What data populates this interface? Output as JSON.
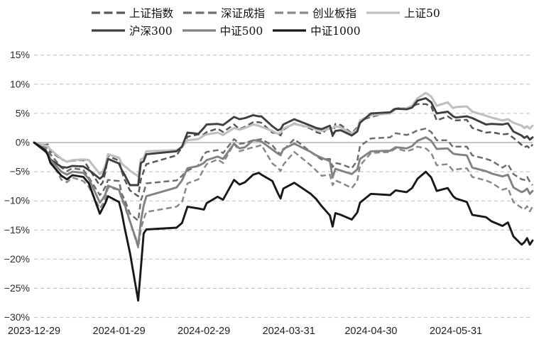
{
  "page": {
    "background": "#ffffff"
  },
  "chart_data": {
    "type": "line",
    "title": "",
    "xlabel": "",
    "ylabel": "",
    "legend_position": "top",
    "grid": {
      "gridline_color": "#bdbdbd",
      "zero_line_color": "#a3a3a3",
      "gridline_style": "dashed"
    },
    "y_axis": {
      "unit": "%",
      "ylim": [
        -30,
        15
      ],
      "tick_values": [
        15,
        10,
        5,
        0,
        -5,
        -10,
        -15,
        -20,
        -25,
        -30
      ],
      "tick_labels": [
        "15%",
        "10%",
        "5%",
        "0%",
        "−5%",
        "−10%",
        "−15%",
        "−20%",
        "−25%",
        "−30%"
      ]
    },
    "x_axis": {
      "unit": "date",
      "start_date": "2023-12-29",
      "range_days": [
        0,
        182
      ],
      "tick_days": [
        0,
        31,
        62,
        93,
        123,
        154
      ],
      "tick_labels": [
        "2023-12-29",
        "2024-01-29",
        "2024-02-29",
        "2024-03-31",
        "2024-04-30",
        "2024-05-31"
      ]
    },
    "x_days": [
      0,
      4,
      5,
      6,
      10,
      12,
      14,
      18,
      20,
      24,
      25,
      26,
      27,
      31,
      32,
      33,
      35,
      38,
      39,
      40,
      41,
      52,
      54,
      56,
      60,
      62,
      63,
      67,
      69,
      73,
      75,
      77,
      80,
      82,
      83,
      87,
      89,
      90,
      91,
      95,
      101,
      103,
      105,
      108,
      109,
      110,
      112,
      116,
      118,
      119,
      123,
      130,
      132,
      136,
      138,
      140,
      143,
      145,
      147,
      151,
      153,
      154,
      158,
      160,
      165,
      167,
      171,
      173,
      175,
      178,
      179,
      180,
      181,
      182
    ],
    "series": [
      {
        "id": "sse-composite",
        "name": "上证指数",
        "color": "#575757",
        "dash": true,
        "width": 2.5,
        "values": [
          0,
          -0.4,
          -0.3,
          -1.5,
          -2.9,
          -3.3,
          -3.1,
          -3.0,
          -4.4,
          -7.4,
          -6.9,
          -5.2,
          -2.3,
          -3.1,
          -4.9,
          -6.3,
          -8.2,
          -9.2,
          -6.3,
          -4.9,
          -3.7,
          -2.2,
          -0.8,
          1.0,
          1.4,
          1.4,
          1.8,
          2.4,
          1.8,
          3.1,
          2.3,
          2.7,
          3.5,
          3.5,
          3.4,
          1.7,
          1.6,
          1.2,
          2.2,
          3.3,
          2.4,
          1.8,
          1.5,
          2.8,
          1.1,
          3.2,
          3.0,
          1.6,
          2.6,
          3.8,
          4.4,
          5.2,
          6.0,
          5.7,
          6.2,
          6.6,
          6.6,
          6.2,
          3.8,
          4.5,
          3.9,
          3.8,
          3.9,
          2.5,
          1.7,
          1.8,
          1.4,
          1.5,
          0.8,
          -0.4,
          -0.8,
          -0.6,
          -1.0,
          -0.3
        ]
      },
      {
        "id": "szse-component",
        "name": "深证成指",
        "color": "#6e6e6e",
        "dash": true,
        "width": 2.5,
        "values": [
          0,
          -0.8,
          -1.1,
          -2.0,
          -4.3,
          -4.9,
          -4.4,
          -4.7,
          -6.0,
          -9.0,
          -8.5,
          -7.6,
          -6.4,
          -6.6,
          -8.8,
          -9.7,
          -12.2,
          -13.4,
          -9.9,
          -8.6,
          -7.0,
          -6.5,
          -5.7,
          -4.8,
          -3.9,
          -2.0,
          -1.6,
          -1.3,
          -1.8,
          0.6,
          -0.2,
          -0.1,
          0.4,
          0.5,
          0.6,
          -0.5,
          -1.6,
          -2.0,
          -1.3,
          0.6,
          -1.6,
          -2.3,
          -2.9,
          -2.8,
          -4.2,
          -3.5,
          -3.7,
          -4.4,
          -3.1,
          -0.6,
          0.7,
          0.9,
          1.6,
          1.3,
          1.6,
          2.1,
          2.4,
          1.8,
          0.4,
          0.4,
          -0.8,
          -0.7,
          -0.7,
          -2.2,
          -2.8,
          -3.1,
          -4.3,
          -3.7,
          -5.4,
          -6.3,
          -6.4,
          -5.9,
          -6.7,
          -7.3
        ]
      },
      {
        "id": "chinext",
        "name": "创业板指",
        "color": "#898989",
        "dash": true,
        "width": 2.5,
        "values": [
          0,
          -0.7,
          -1.6,
          -2.9,
          -6.4,
          -6.8,
          -6.0,
          -6.6,
          -7.6,
          -11.3,
          -10.6,
          -9.6,
          -7.7,
          -8.1,
          -9.8,
          -10.8,
          -13.6,
          -18.0,
          -14.9,
          -13.1,
          -11.9,
          -11.0,
          -10.2,
          -7.0,
          -6.3,
          -4.5,
          -3.7,
          -2.9,
          -3.5,
          -0.2,
          -1.5,
          -1.2,
          -0.8,
          -0.6,
          -0.4,
          -3.6,
          -4.3,
          -4.9,
          -3.8,
          -1.6,
          -3.9,
          -4.8,
          -5.7,
          -5.5,
          -7.3,
          -6.5,
          -6.9,
          -7.8,
          -6.6,
          -3.9,
          -1.8,
          -1.6,
          -1.0,
          -1.5,
          -1.2,
          -0.7,
          -1.0,
          -1.8,
          -3.9,
          -3.7,
          -4.8,
          -4.6,
          -4.4,
          -5.9,
          -6.5,
          -6.9,
          -8.1,
          -7.8,
          -10.2,
          -11.2,
          -11.5,
          -10.9,
          -11.8,
          -11.0
        ]
      },
      {
        "id": "sse50",
        "name": "上证50",
        "color": "#bfbfbf",
        "dash": false,
        "width": 3.1,
        "values": [
          0,
          -0.5,
          -0.6,
          -1.2,
          -2.8,
          -3.3,
          -3.0,
          -2.9,
          -3.0,
          -5.4,
          -5.0,
          -4.0,
          -2.0,
          -2.6,
          -3.6,
          -4.0,
          -4.8,
          -5.8,
          -2.9,
          -2.6,
          -1.5,
          -1.3,
          -0.8,
          0.4,
          0.6,
          1.2,
          1.4,
          1.7,
          1.3,
          2.5,
          2.2,
          2.5,
          3.1,
          2.9,
          2.7,
          2.0,
          1.5,
          1.7,
          2.4,
          3.2,
          2.6,
          2.2,
          2.0,
          2.4,
          2.5,
          2.8,
          2.6,
          1.5,
          2.3,
          3.8,
          4.7,
          5.0,
          5.8,
          5.9,
          6.3,
          7.6,
          8.5,
          7.9,
          6.3,
          6.9,
          5.9,
          6.1,
          6.2,
          5.3,
          4.6,
          4.3,
          3.8,
          4.0,
          3.4,
          2.9,
          2.5,
          2.8,
          2.4,
          2.9
        ]
      },
      {
        "id": "csi300",
        "name": "沪深300",
        "color": "#3f3f3f",
        "dash": false,
        "width": 2.9,
        "values": [
          0,
          -1.5,
          -1.8,
          -2.9,
          -4.2,
          -4.3,
          -4.0,
          -4.1,
          -4.7,
          -6.2,
          -5.8,
          -4.5,
          -2.8,
          -3.6,
          -4.7,
          -5.5,
          -7.3,
          -7.3,
          -3.5,
          -3.2,
          -2.0,
          -1.5,
          -0.7,
          1.7,
          1.5,
          2.5,
          3.1,
          3.2,
          3.0,
          4.4,
          4.0,
          4.2,
          4.7,
          4.5,
          4.5,
          2.8,
          2.1,
          2.3,
          3.1,
          4.0,
          2.9,
          2.5,
          2.3,
          2.9,
          1.2,
          2.0,
          2.1,
          1.2,
          1.9,
          3.4,
          5.0,
          5.2,
          5.8,
          5.7,
          6.0,
          7.2,
          7.6,
          6.9,
          5.0,
          5.3,
          4.5,
          4.3,
          4.5,
          4.2,
          3.1,
          3.2,
          3.1,
          3.3,
          1.9,
          1.2,
          0.8,
          1.1,
          0.5,
          0.9
        ]
      },
      {
        "id": "csi500",
        "name": "中证500",
        "color": "#828282",
        "dash": false,
        "width": 2.9,
        "values": [
          0,
          -1.1,
          -1.8,
          -3.0,
          -5.0,
          -5.5,
          -5.0,
          -5.2,
          -6.2,
          -10.3,
          -9.7,
          -8.9,
          -7.4,
          -8.1,
          -9.5,
          -10.5,
          -13.5,
          -17.7,
          -13.5,
          -10.8,
          -9.2,
          -7.7,
          -6.5,
          -4.4,
          -4.0,
          -3.5,
          -3.0,
          -2.4,
          -2.8,
          -0.2,
          -1.0,
          -0.8,
          0.4,
          0.3,
          0.2,
          -1.2,
          -1.9,
          -2.2,
          -1.1,
          -0.2,
          -1.6,
          -2.2,
          -2.6,
          -3.2,
          -6.0,
          -4.5,
          -4.8,
          -5.4,
          -4.6,
          -2.8,
          -1.5,
          -1.4,
          -0.8,
          -1.0,
          -0.6,
          0.3,
          0.9,
          0.3,
          -1.1,
          -1.0,
          -1.9,
          -2.0,
          -2.2,
          -4.3,
          -4.9,
          -5.3,
          -5.8,
          -5.5,
          -7.7,
          -8.5,
          -8.3,
          -7.9,
          -8.8,
          -8.3
        ]
      },
      {
        "id": "csi1000",
        "name": "中证1000",
        "color": "#191919",
        "dash": false,
        "width": 2.9,
        "values": [
          0,
          -1.3,
          -2.1,
          -3.5,
          -5.7,
          -6.3,
          -5.6,
          -5.9,
          -7.0,
          -12.2,
          -11.3,
          -10.4,
          -9.2,
          -10.2,
          -12.0,
          -14.5,
          -18.9,
          -27.1,
          -21.5,
          -15.6,
          -14.9,
          -14.6,
          -13.8,
          -11.0,
          -11.3,
          -11.5,
          -10.4,
          -9.3,
          -9.8,
          -6.4,
          -7.2,
          -6.8,
          -5.5,
          -5.2,
          -5.5,
          -6.6,
          -8.7,
          -9.6,
          -7.9,
          -6.9,
          -8.8,
          -9.7,
          -10.9,
          -12.5,
          -14.4,
          -12.1,
          -12.4,
          -13.2,
          -12.0,
          -10.3,
          -8.8,
          -9.0,
          -8.2,
          -8.5,
          -7.8,
          -6.2,
          -5.0,
          -6.0,
          -8.3,
          -7.8,
          -9.2,
          -9.6,
          -10.2,
          -12.4,
          -12.8,
          -13.5,
          -14.3,
          -13.7,
          -16.1,
          -17.5,
          -17.1,
          -16.4,
          -17.5,
          -16.8
        ]
      }
    ]
  }
}
